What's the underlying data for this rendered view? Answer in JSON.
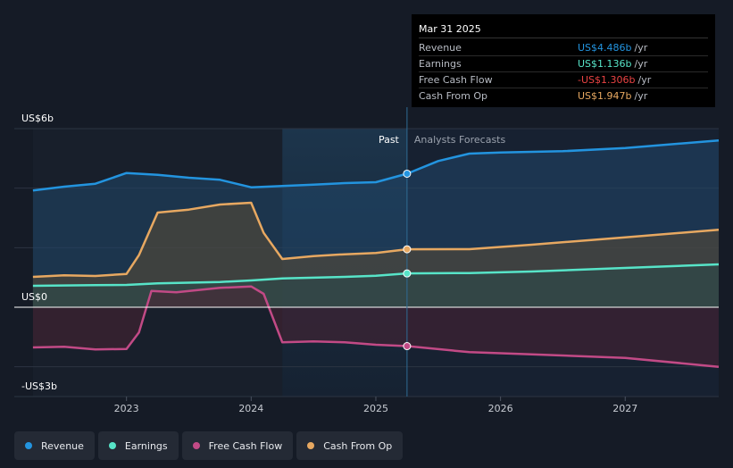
{
  "chart_data": {
    "type": "line",
    "x_axis": {
      "ticks": [
        "2023",
        "2024",
        "2025",
        "2026",
        "2027"
      ],
      "range": [
        2022.1,
        2027.75
      ]
    },
    "y_axis": {
      "label_top": "US$6b",
      "label_zero": "US$0",
      "label_bottom": "-US$3b",
      "range": [
        -3.0,
        6.0
      ]
    },
    "divider_x": 2025.25,
    "past_label": "Past",
    "forecast_label": "Analysts Forecasts",
    "series": [
      {
        "key": "revenue",
        "name": "Revenue",
        "color": "#2394df",
        "points": [
          [
            2022.25,
            3.92
          ],
          [
            2022.5,
            4.05
          ],
          [
            2022.75,
            4.15
          ],
          [
            2023.0,
            4.51
          ],
          [
            2023.25,
            4.45
          ],
          [
            2023.5,
            4.35
          ],
          [
            2023.75,
            4.28
          ],
          [
            2024.0,
            4.03
          ],
          [
            2024.25,
            4.07
          ],
          [
            2024.5,
            4.12
          ],
          [
            2024.75,
            4.17
          ],
          [
            2025.0,
            4.2
          ],
          [
            2025.25,
            4.486
          ],
          [
            2025.5,
            4.91
          ],
          [
            2025.75,
            5.16
          ],
          [
            2026.0,
            5.2
          ],
          [
            2026.5,
            5.24
          ],
          [
            2027.0,
            5.35
          ],
          [
            2027.75,
            5.6
          ]
        ]
      },
      {
        "key": "earnings",
        "name": "Earnings",
        "color": "#57e4c8",
        "points": [
          [
            2022.25,
            0.72
          ],
          [
            2022.75,
            0.74
          ],
          [
            2023.0,
            0.75
          ],
          [
            2023.25,
            0.8
          ],
          [
            2023.75,
            0.85
          ],
          [
            2024.0,
            0.9
          ],
          [
            2024.25,
            0.97
          ],
          [
            2024.75,
            1.02
          ],
          [
            2025.0,
            1.06
          ],
          [
            2025.25,
            1.136
          ],
          [
            2025.75,
            1.15
          ],
          [
            2026.25,
            1.2
          ],
          [
            2027.0,
            1.32
          ],
          [
            2027.75,
            1.44
          ]
        ]
      },
      {
        "key": "free_cash_flow",
        "name": "Free Cash Flow",
        "color": "#c24a86",
        "points": [
          [
            2022.25,
            -1.35
          ],
          [
            2022.5,
            -1.33
          ],
          [
            2022.75,
            -1.42
          ],
          [
            2023.0,
            -1.4
          ],
          [
            2023.1,
            -0.85
          ],
          [
            2023.2,
            0.55
          ],
          [
            2023.4,
            0.5
          ],
          [
            2023.75,
            0.65
          ],
          [
            2024.0,
            0.7
          ],
          [
            2024.1,
            0.45
          ],
          [
            2024.25,
            -1.18
          ],
          [
            2024.5,
            -1.15
          ],
          [
            2024.75,
            -1.18
          ],
          [
            2025.0,
            -1.26
          ],
          [
            2025.25,
            -1.306
          ],
          [
            2025.75,
            -1.51
          ],
          [
            2026.25,
            -1.58
          ],
          [
            2027.0,
            -1.7
          ],
          [
            2027.75,
            -2.0
          ]
        ]
      },
      {
        "key": "cash_from_op",
        "name": "Cash From Op",
        "color": "#e7a861",
        "points": [
          [
            2022.25,
            1.02
          ],
          [
            2022.5,
            1.07
          ],
          [
            2022.75,
            1.05
          ],
          [
            2023.0,
            1.12
          ],
          [
            2023.1,
            1.75
          ],
          [
            2023.25,
            3.18
          ],
          [
            2023.5,
            3.28
          ],
          [
            2023.75,
            3.45
          ],
          [
            2024.0,
            3.51
          ],
          [
            2024.1,
            2.5
          ],
          [
            2024.25,
            1.62
          ],
          [
            2024.5,
            1.72
          ],
          [
            2024.75,
            1.78
          ],
          [
            2025.0,
            1.82
          ],
          [
            2025.25,
            1.947
          ],
          [
            2025.75,
            1.95
          ],
          [
            2026.25,
            2.1
          ],
          [
            2027.0,
            2.35
          ],
          [
            2027.75,
            2.6
          ]
        ]
      }
    ],
    "highlight_x": 2025.25
  },
  "tooltip": {
    "date": "Mar 31 2025",
    "rows": [
      {
        "label": "Revenue",
        "value": "US$4.486b",
        "unit": "/yr",
        "color": "#2394df"
      },
      {
        "label": "Earnings",
        "value": "US$1.136b",
        "unit": "/yr",
        "color": "#57e4c8"
      },
      {
        "label": "Free Cash Flow",
        "value": "-US$1.306b",
        "unit": "/yr",
        "color": "#ea4343"
      },
      {
        "label": "Cash From Op",
        "value": "US$1.947b",
        "unit": "/yr",
        "color": "#e7a861"
      }
    ]
  },
  "legend": [
    {
      "label": "Revenue",
      "color": "#2394df"
    },
    {
      "label": "Earnings",
      "color": "#57e4c8"
    },
    {
      "label": "Free Cash Flow",
      "color": "#c24a86"
    },
    {
      "label": "Cash From Op",
      "color": "#e7a861"
    }
  ]
}
